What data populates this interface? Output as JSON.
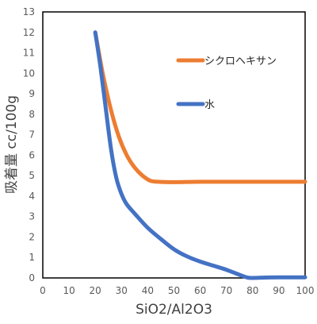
{
  "chart_data": {
    "type": "line",
    "xlabel": "SiO2/Al2O3",
    "ylabel": "吸着量 cc/100g",
    "xlim": [
      0,
      100
    ],
    "ylim": [
      0,
      13
    ],
    "x_ticks": [
      "0",
      "10",
      "20",
      "30",
      "40",
      "50",
      "60",
      "70",
      "80",
      "90",
      "100"
    ],
    "y_ticks": [
      "0",
      "1",
      "2",
      "3",
      "4",
      "5",
      "6",
      "7",
      "8",
      "9",
      "10",
      "11",
      "12",
      "13"
    ],
    "grid": false,
    "legend_position": "inside-right",
    "series": [
      {
        "name": "シクロヘキサン",
        "color": "#ED7D31",
        "x": [
          20,
          23,
          26,
          29,
          32,
          35,
          38,
          41,
          44,
          50,
          60,
          70,
          80,
          90,
          100
        ],
        "y": [
          12.0,
          9.9,
          8.2,
          6.9,
          6.0,
          5.4,
          5.0,
          4.75,
          4.7,
          4.68,
          4.7,
          4.7,
          4.7,
          4.7,
          4.7
        ]
      },
      {
        "name": "水",
        "color": "#4472C4",
        "x": [
          20,
          22,
          24,
          26,
          28,
          30,
          32,
          35,
          40,
          45,
          50,
          55,
          60,
          65,
          70,
          75,
          78,
          80,
          85,
          90,
          100
        ],
        "y": [
          12.0,
          10.3,
          8.3,
          6.3,
          4.9,
          4.1,
          3.6,
          3.15,
          2.45,
          1.9,
          1.4,
          1.05,
          0.8,
          0.6,
          0.4,
          0.15,
          0.02,
          0.0,
          0.02,
          0.03,
          0.03
        ]
      }
    ]
  }
}
